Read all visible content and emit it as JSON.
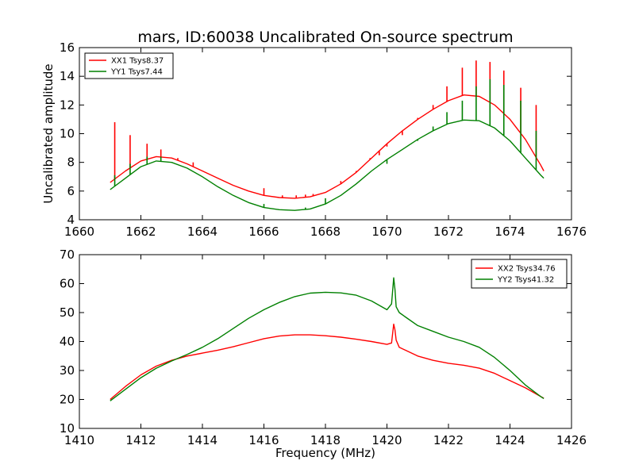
{
  "title": "mars, ID:60038 Uncalibrated On-source spectrum",
  "colors": {
    "xx": "#ff0000",
    "yy": "#008000",
    "axes": "#000000",
    "background": "#ffffff"
  },
  "chart_data": [
    {
      "type": "line",
      "title": "mars, ID:60038 Uncalibrated On-source spectrum",
      "xlabel": "",
      "ylabel": "Uncalibrated amplitude",
      "xlim": [
        1660,
        1676
      ],
      "ylim": [
        4,
        16
      ],
      "xticks": [
        1660,
        1662,
        1664,
        1666,
        1668,
        1670,
        1672,
        1674,
        1676
      ],
      "yticks": [
        4,
        6,
        8,
        10,
        12,
        14,
        16
      ],
      "grid": false,
      "legend_position": "top-left",
      "series": [
        {
          "name": "XX1 Tsys8.37",
          "color": "#ff0000",
          "x": [
            1661.0,
            1661.5,
            1662.0,
            1662.5,
            1663.0,
            1663.5,
            1664.0,
            1664.5,
            1665.0,
            1665.5,
            1666.0,
            1666.5,
            1667.0,
            1667.5,
            1668.0,
            1668.5,
            1669.0,
            1669.5,
            1670.0,
            1670.5,
            1671.0,
            1671.5,
            1672.0,
            1672.5,
            1673.0,
            1673.5,
            1674.0,
            1674.5,
            1675.0,
            1675.1
          ],
          "y": [
            6.6,
            7.4,
            8.1,
            8.4,
            8.3,
            7.9,
            7.4,
            6.9,
            6.4,
            6.0,
            5.7,
            5.55,
            5.5,
            5.6,
            5.9,
            6.5,
            7.3,
            8.3,
            9.3,
            10.2,
            11.0,
            11.7,
            12.3,
            12.7,
            12.6,
            12.0,
            11.0,
            9.6,
            7.8,
            7.4
          ],
          "spikes": [
            {
              "x": 1661.15,
              "peak": 10.8
            },
            {
              "x": 1661.65,
              "peak": 9.9
            },
            {
              "x": 1662.2,
              "peak": 9.3
            },
            {
              "x": 1662.65,
              "peak": 8.9
            },
            {
              "x": 1663.2,
              "peak": 8.3
            },
            {
              "x": 1663.7,
              "peak": 8.0
            },
            {
              "x": 1666.0,
              "peak": 6.2
            },
            {
              "x": 1666.6,
              "peak": 5.7
            },
            {
              "x": 1667.05,
              "peak": 5.7
            },
            {
              "x": 1667.35,
              "peak": 5.75
            },
            {
              "x": 1667.6,
              "peak": 5.8
            },
            {
              "x": 1668.5,
              "peak": 6.7
            },
            {
              "x": 1669.0,
              "peak": 7.4
            },
            {
              "x": 1669.45,
              "peak": 8.3
            },
            {
              "x": 1669.75,
              "peak": 8.5
            },
            {
              "x": 1670.0,
              "peak": 9.1
            },
            {
              "x": 1670.5,
              "peak": 9.9
            },
            {
              "x": 1671.0,
              "peak": 11.1
            },
            {
              "x": 1671.5,
              "peak": 12.0
            },
            {
              "x": 1671.95,
              "peak": 13.3
            },
            {
              "x": 1672.45,
              "peak": 14.6
            },
            {
              "x": 1672.9,
              "peak": 15.1
            },
            {
              "x": 1673.35,
              "peak": 15.0
            },
            {
              "x": 1673.8,
              "peak": 14.4
            },
            {
              "x": 1674.35,
              "peak": 13.2
            },
            {
              "x": 1674.85,
              "peak": 12.0
            }
          ]
        },
        {
          "name": "YY1 Tsys7.44",
          "color": "#008000",
          "x": [
            1661.0,
            1661.5,
            1662.0,
            1662.5,
            1663.0,
            1663.5,
            1664.0,
            1664.5,
            1665.0,
            1665.5,
            1666.0,
            1666.5,
            1667.0,
            1667.5,
            1668.0,
            1668.5,
            1669.0,
            1669.5,
            1670.0,
            1670.5,
            1671.0,
            1671.5,
            1672.0,
            1672.5,
            1673.0,
            1673.5,
            1674.0,
            1674.5,
            1675.0,
            1675.1
          ],
          "y": [
            6.1,
            6.9,
            7.7,
            8.1,
            8.0,
            7.6,
            7.0,
            6.3,
            5.7,
            5.2,
            4.85,
            4.7,
            4.65,
            4.75,
            5.1,
            5.7,
            6.5,
            7.4,
            8.2,
            8.9,
            9.6,
            10.2,
            10.7,
            10.95,
            10.9,
            10.4,
            9.5,
            8.3,
            7.1,
            6.9
          ],
          "spikes": [
            {
              "x": 1661.15,
              "peak": 7.1
            },
            {
              "x": 1661.65,
              "peak": 7.9
            },
            {
              "x": 1662.2,
              "peak": 8.4
            },
            {
              "x": 1662.65,
              "peak": 8.4
            },
            {
              "x": 1666.0,
              "peak": 5.1
            },
            {
              "x": 1667.35,
              "peak": 4.85
            },
            {
              "x": 1668.0,
              "peak": 5.5
            },
            {
              "x": 1670.0,
              "peak": 7.9
            },
            {
              "x": 1671.0,
              "peak": 9.5
            },
            {
              "x": 1671.5,
              "peak": 10.5
            },
            {
              "x": 1671.95,
              "peak": 11.5
            },
            {
              "x": 1672.45,
              "peak": 12.3
            },
            {
              "x": 1672.9,
              "peak": 13.3
            },
            {
              "x": 1673.35,
              "peak": 13.8
            },
            {
              "x": 1673.8,
              "peak": 13.4
            },
            {
              "x": 1674.35,
              "peak": 12.3
            },
            {
              "x": 1674.85,
              "peak": 10.2
            }
          ]
        }
      ]
    },
    {
      "type": "line",
      "title": "",
      "xlabel": "Frequency (MHz)",
      "ylabel": "",
      "xlim": [
        1410,
        1426
      ],
      "ylim": [
        10,
        70
      ],
      "xticks": [
        1410,
        1412,
        1414,
        1416,
        1418,
        1420,
        1422,
        1424,
        1426
      ],
      "yticks": [
        10,
        20,
        30,
        40,
        50,
        60,
        70
      ],
      "grid": false,
      "legend_position": "top-right",
      "series": [
        {
          "name": "XX2 Tsys34.76",
          "color": "#ff0000",
          "x": [
            1411.0,
            1411.5,
            1412.0,
            1412.5,
            1413.0,
            1413.5,
            1414.0,
            1414.5,
            1415.0,
            1415.5,
            1416.0,
            1416.5,
            1417.0,
            1417.5,
            1418.0,
            1418.5,
            1419.0,
            1419.5,
            1420.0,
            1420.15,
            1420.22,
            1420.26,
            1420.3,
            1420.4,
            1420.6,
            1421.0,
            1421.5,
            1422.0,
            1422.5,
            1423.0,
            1423.5,
            1424.0,
            1424.5,
            1425.0,
            1425.1
          ],
          "y": [
            20.0,
            24.5,
            28.5,
            31.5,
            33.5,
            35.0,
            36.0,
            37.0,
            38.2,
            39.6,
            41.0,
            41.9,
            42.3,
            42.3,
            42.0,
            41.5,
            40.8,
            40.0,
            39.0,
            39.5,
            46.0,
            44.0,
            40.5,
            38.0,
            37.0,
            35.0,
            33.5,
            32.5,
            31.8,
            30.8,
            29.0,
            26.5,
            24.0,
            21.0,
            20.4
          ]
        },
        {
          "name": "YY2 Tsys41.32",
          "color": "#008000",
          "x": [
            1411.0,
            1411.5,
            1412.0,
            1412.5,
            1413.0,
            1413.5,
            1414.0,
            1414.5,
            1415.0,
            1415.5,
            1416.0,
            1416.5,
            1417.0,
            1417.5,
            1418.0,
            1418.5,
            1419.0,
            1419.5,
            1420.0,
            1420.15,
            1420.22,
            1420.26,
            1420.3,
            1420.4,
            1420.6,
            1421.0,
            1421.5,
            1422.0,
            1422.5,
            1423.0,
            1423.5,
            1424.0,
            1424.5,
            1425.0,
            1425.1
          ],
          "y": [
            19.5,
            23.5,
            27.5,
            30.8,
            33.3,
            35.5,
            38.0,
            41.0,
            44.5,
            48.0,
            51.0,
            53.5,
            55.5,
            56.7,
            57.0,
            56.8,
            56.0,
            54.0,
            51.0,
            53.0,
            62.0,
            58.0,
            52.0,
            50.0,
            48.5,
            45.5,
            43.5,
            41.5,
            40.0,
            38.0,
            34.5,
            30.0,
            25.0,
            21.0,
            20.3
          ]
        }
      ]
    }
  ]
}
